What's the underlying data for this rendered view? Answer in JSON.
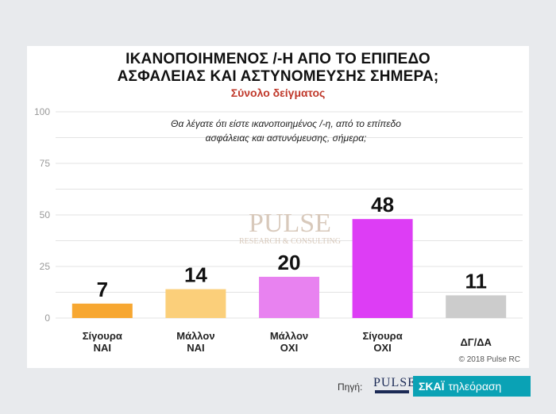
{
  "title_line1": "ΙΚΑΝΟΠΟΙΗΜΕΝΟΣ /-Η  ΑΠΟ ΤΟ ΕΠΙΠΕΔΟ",
  "title_line2": "ΑΣΦΑΛΕΙΑΣ ΚΑΙ ΑΣΤΥΝΟΜΕΥΣΗΣ ΣΗΜΕΡΑ;",
  "subtitle": "Σύνολο δείγματος",
  "question_line1": "Θα λέγατε ότι είστε ικανοποιημένος /-η, από το επίπεδο",
  "question_line2": "ασφάλειας και αστυνόμευσης, σήμερα;",
  "copyright": "© 2018 Pulse RC",
  "footer": {
    "source_label": "Πηγή:",
    "pulse_logo": "PULSE",
    "skai_name": "ΣΚΑΪ",
    "skai_tv": "τηλεόραση"
  },
  "watermark": {
    "name": "PULSE",
    "tagline": "RESEARCH & CONSULTING"
  },
  "chart_data": {
    "type": "bar",
    "categories": [
      [
        "Σίγουρα",
        "ΝΑΙ"
      ],
      [
        "Μάλλον",
        "ΝΑΙ"
      ],
      [
        "Μάλλον",
        "ΟΧΙ"
      ],
      [
        "Σίγουρα",
        "ΟΧΙ"
      ],
      [
        "ΔΓ/ΔΑ"
      ]
    ],
    "values": [
      7,
      14,
      20,
      48,
      11
    ],
    "colors": [
      "#f7a731",
      "#fbcf7a",
      "#e882f0",
      "#dd3df5",
      "#cccccc"
    ],
    "ylim": [
      0,
      100
    ],
    "yticks": [
      0,
      25,
      50,
      75,
      100
    ],
    "grid": true,
    "legend": "none"
  }
}
